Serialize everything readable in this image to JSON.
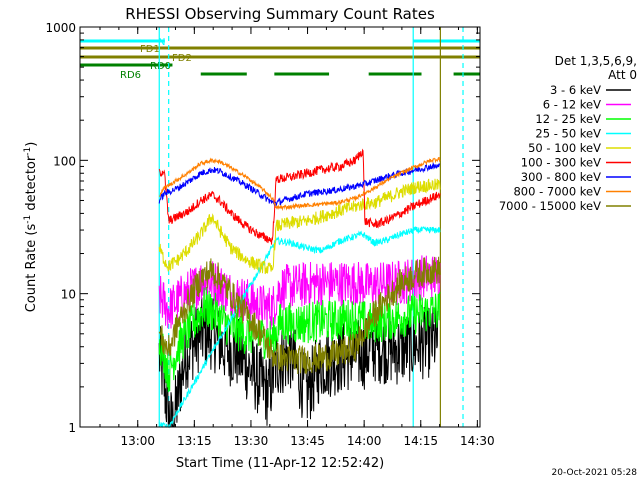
{
  "chart_data": {
    "type": "line",
    "title": "RHESSI Observing Summary Count Rates",
    "xlabel": "Start Time (11-Apr-12 12:52:42)",
    "ylabel_main": "Count Rate (s",
    "ylabel_sup1": "-1",
    "ylabel_mid": " detector",
    "ylabel_sup2": "-1",
    "ylabel_end": ")",
    "y_scale": "log",
    "xlim_min": [
      -8,
      98
    ],
    "ylim": [
      1,
      1000
    ],
    "x_ticks": [
      {
        "min": 7.3,
        "label": "13:00"
      },
      {
        "min": 22.3,
        "label": "13:15"
      },
      {
        "min": 37.3,
        "label": "13:30"
      },
      {
        "min": 52.3,
        "label": "13:45"
      },
      {
        "min": 67.3,
        "label": "14:00"
      },
      {
        "min": 82.3,
        "label": "14:15"
      },
      {
        "min": 97.3,
        "label": "14:30"
      }
    ],
    "y_ticks": [
      {
        "value": 1,
        "label": "1"
      },
      {
        "value": 10,
        "label": "10"
      },
      {
        "value": 100,
        "label": "100"
      },
      {
        "value": 1000,
        "label": "1000"
      }
    ],
    "legend_header": [
      "Det 1,3,5,6,9,",
      "Att 0"
    ],
    "legend_placement": "right",
    "series": [
      {
        "name": "3 - 6 keV",
        "color": "#000000",
        "points": [
          [
            13.0,
            3.5
          ],
          [
            14.2,
            2.2
          ],
          [
            15.5,
            1.2
          ],
          [
            16.5,
            1.0
          ],
          [
            20,
            3.5
          ],
          [
            24,
            5
          ],
          [
            27,
            5
          ],
          [
            30,
            4
          ],
          [
            34,
            3.5
          ],
          [
            38,
            2.5
          ],
          [
            42,
            1.8
          ],
          [
            44,
            3
          ],
          [
            48,
            3.5
          ],
          [
            50,
            2.5
          ],
          [
            52,
            1.8
          ],
          [
            56,
            3
          ],
          [
            60,
            3.2
          ],
          [
            64,
            3.5
          ],
          [
            67,
            3.5
          ],
          [
            70,
            4
          ],
          [
            76,
            3.8
          ],
          [
            82,
            4.2
          ],
          [
            87,
            4.5
          ]
        ]
      },
      {
        "name": "6 - 12 keV",
        "color": "#ff00ff",
        "points": [
          [
            13.0,
            9.5
          ],
          [
            14.3,
            8.5
          ],
          [
            15.5,
            7.5
          ],
          [
            18,
            9
          ],
          [
            22,
            11
          ],
          [
            25,
            13
          ],
          [
            28,
            12
          ],
          [
            32,
            10
          ],
          [
            36,
            9
          ],
          [
            40,
            8
          ],
          [
            43,
            7.8
          ],
          [
            45,
            11
          ],
          [
            50,
            11.5
          ],
          [
            55,
            12
          ],
          [
            60,
            12
          ],
          [
            65,
            12
          ],
          [
            69,
            11.5
          ],
          [
            72,
            11.8
          ],
          [
            76,
            12
          ],
          [
            80,
            12.8
          ],
          [
            84,
            13.5
          ],
          [
            87.5,
            13.5
          ]
        ]
      },
      {
        "name": "12 - 25 keV",
        "color": "#00ff00",
        "points": [
          [
            13.0,
            4.5
          ],
          [
            14.3,
            3.5
          ],
          [
            15.5,
            2.5
          ],
          [
            18,
            4
          ],
          [
            22,
            6
          ],
          [
            25,
            8
          ],
          [
            28,
            7
          ],
          [
            32,
            5.5
          ],
          [
            36,
            5
          ],
          [
            40,
            4.8
          ],
          [
            43,
            4.5
          ],
          [
            45,
            6
          ],
          [
            50,
            6
          ],
          [
            55,
            6.2
          ],
          [
            60,
            6.3
          ],
          [
            65,
            6.5
          ],
          [
            69,
            6
          ],
          [
            72,
            6.2
          ],
          [
            76,
            6.6
          ],
          [
            80,
            7
          ],
          [
            84,
            7.3
          ],
          [
            87.5,
            7.5
          ]
        ]
      },
      {
        "name": "25 - 50 keV",
        "color": "#00ffff",
        "points": [
          [
            13.0,
            1.05
          ],
          [
            14.3,
            1.02
          ],
          [
            15.5,
            1.0
          ],
          [
            44,
            25
          ],
          [
            48,
            24
          ],
          [
            52,
            22
          ],
          [
            56,
            21
          ],
          [
            61,
            25
          ],
          [
            65,
            27
          ],
          [
            67,
            28
          ],
          [
            70,
            24
          ],
          [
            73,
            25
          ],
          [
            77,
            28
          ],
          [
            81,
            30
          ],
          [
            87.5,
            30
          ]
        ]
      },
      {
        "name": "50 - 100 keV",
        "color": "#dddd00",
        "points": [
          [
            13.0,
            22
          ],
          [
            14.3,
            18
          ],
          [
            15.5,
            16
          ],
          [
            18,
            18
          ],
          [
            21,
            22
          ],
          [
            24,
            28
          ],
          [
            27,
            38
          ],
          [
            29,
            30
          ],
          [
            32,
            22
          ],
          [
            36,
            18
          ],
          [
            40,
            16
          ],
          [
            43,
            15
          ],
          [
            44,
            32
          ],
          [
            48,
            34
          ],
          [
            52,
            35
          ],
          [
            56,
            38
          ],
          [
            61,
            42
          ],
          [
            65,
            45
          ],
          [
            67,
            47
          ],
          [
            70,
            48
          ],
          [
            73,
            52
          ],
          [
            77,
            58
          ],
          [
            81,
            63
          ],
          [
            85,
            65
          ],
          [
            87.5,
            65
          ]
        ]
      },
      {
        "name": "100 - 300 keV",
        "color": "#ff0000",
        "points": [
          [
            13.0,
            80
          ],
          [
            14.3,
            84
          ],
          [
            15.5,
            35
          ],
          [
            18,
            38
          ],
          [
            21,
            42
          ],
          [
            24,
            50
          ],
          [
            27,
            55
          ],
          [
            29,
            50
          ],
          [
            32,
            40
          ],
          [
            36,
            32
          ],
          [
            40,
            27
          ],
          [
            43,
            25
          ],
          [
            44,
            72
          ],
          [
            48,
            75
          ],
          [
            52,
            80
          ],
          [
            56,
            85
          ],
          [
            61,
            90
          ],
          [
            65,
            100
          ],
          [
            67,
            120
          ],
          [
            67.5,
            35
          ],
          [
            70,
            33
          ],
          [
            73,
            35
          ],
          [
            77,
            40
          ],
          [
            81,
            46
          ],
          [
            85,
            52
          ],
          [
            87.5,
            55
          ]
        ]
      },
      {
        "name": "300 - 800 keV",
        "color": "#0000ff",
        "points": [
          [
            13.0,
            50
          ],
          [
            14.3,
            56
          ],
          [
            15.5,
            58
          ],
          [
            18,
            62
          ],
          [
            21,
            70
          ],
          [
            24,
            80
          ],
          [
            27,
            85
          ],
          [
            29,
            83
          ],
          [
            32,
            75
          ],
          [
            36,
            65
          ],
          [
            40,
            55
          ],
          [
            43,
            48
          ],
          [
            44,
            48
          ],
          [
            48,
            52
          ],
          [
            52,
            56
          ],
          [
            56,
            58
          ],
          [
            60,
            60
          ],
          [
            65,
            64
          ],
          [
            67,
            66
          ],
          [
            70,
            70
          ],
          [
            73,
            75
          ],
          [
            77,
            80
          ],
          [
            81,
            85
          ],
          [
            85,
            90
          ],
          [
            87.5,
            90
          ]
        ]
      },
      {
        "name": "800 - 7000 keV",
        "color": "#ff8000",
        "points": [
          [
            13.0,
            55
          ],
          [
            14.3,
            62
          ],
          [
            15.5,
            65
          ],
          [
            18,
            72
          ],
          [
            21,
            82
          ],
          [
            24,
            95
          ],
          [
            27,
            100
          ],
          [
            29,
            98
          ],
          [
            32,
            88
          ],
          [
            36,
            75
          ],
          [
            40,
            62
          ],
          [
            43,
            52
          ],
          [
            44,
            44
          ],
          [
            48,
            45
          ],
          [
            52,
            46
          ],
          [
            56,
            47
          ],
          [
            60,
            48
          ],
          [
            65,
            52
          ],
          [
            67,
            56
          ],
          [
            70,
            62
          ],
          [
            73,
            70
          ],
          [
            77,
            80
          ],
          [
            81,
            90
          ],
          [
            85,
            100
          ],
          [
            87.5,
            103
          ]
        ]
      },
      {
        "name": "7000 - 15000 keV",
        "color": "#808000",
        "points": [
          [
            13.0,
            5
          ],
          [
            14.3,
            4.2
          ],
          [
            15.5,
            3.8
          ],
          [
            18,
            6
          ],
          [
            21,
            9
          ],
          [
            24,
            13
          ],
          [
            27,
            15
          ],
          [
            29,
            13
          ],
          [
            32,
            10
          ],
          [
            36,
            7
          ],
          [
            40,
            5
          ],
          [
            43,
            3.5
          ],
          [
            44,
            3.4
          ],
          [
            48,
            3.2
          ],
          [
            52,
            3.2
          ],
          [
            56,
            3.3
          ],
          [
            60,
            3.5
          ],
          [
            65,
            4
          ],
          [
            67,
            5
          ],
          [
            70,
            7
          ],
          [
            73,
            9
          ],
          [
            77,
            12
          ],
          [
            81,
            14
          ],
          [
            85,
            15
          ],
          [
            87.5,
            15
          ]
        ]
      }
    ],
    "vlines": [
      {
        "min": 13.0,
        "style": "solid",
        "color": "#00ffff"
      },
      {
        "min": 15.5,
        "style": "dashed",
        "color": "#00ffff"
      },
      {
        "min": 80.3,
        "style": "solid",
        "color": "#00ffff"
      },
      {
        "min": 93.5,
        "style": "dashed",
        "color": "#00ffff"
      },
      {
        "min": 87.5,
        "style": "solid",
        "color": "#808000"
      }
    ],
    "flag_bars": [
      {
        "name": "N",
        "color": "#00ffff",
        "segments": [
          [
            -8,
            14.5
          ],
          [
            80.3,
            98
          ]
        ]
      },
      {
        "name": "FD1",
        "color": "#808000",
        "segments": [
          [
            -8,
            98
          ]
        ]
      },
      {
        "name": "FD2",
        "color": "#808000",
        "segments": [
          [
            -8,
            98
          ]
        ]
      },
      {
        "name": "RD0",
        "color": "#008000",
        "segments": [
          [
            -8,
            16.5
          ]
        ]
      },
      {
        "name": "RD6",
        "color": "#008000",
        "segments": [
          [
            24.0,
            36.2
          ],
          [
            43.5,
            58.0
          ],
          [
            68.5,
            82.5
          ],
          [
            91.0,
            98
          ]
        ]
      }
    ],
    "flag_labels": [
      "N",
      "FD1",
      "FD2",
      "RD0",
      "RD6"
    ],
    "footer_timestamp": "20-Oct-2021 05:28"
  }
}
